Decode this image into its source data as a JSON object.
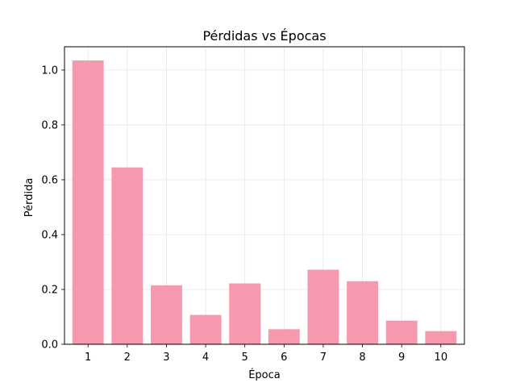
{
  "chart_data": {
    "type": "bar",
    "title": "Pérdidas vs Épocas",
    "xlabel": "Época",
    "ylabel": "Pérdida",
    "categories": [
      "1",
      "2",
      "3",
      "4",
      "5",
      "6",
      "7",
      "8",
      "9",
      "10"
    ],
    "values": [
      1.035,
      0.645,
      0.215,
      0.107,
      0.222,
      0.055,
      0.272,
      0.23,
      0.086,
      0.048
    ],
    "ylim": [
      0,
      1.085
    ],
    "yticks": [
      0.0,
      0.2,
      0.4,
      0.6,
      0.8,
      1.0
    ],
    "ytick_labels": [
      "0.0",
      "0.2",
      "0.4",
      "0.6",
      "0.8",
      "1.0"
    ],
    "grid": true,
    "bar_color": "#f799ae",
    "grid_color": "#e6e6e6"
  }
}
